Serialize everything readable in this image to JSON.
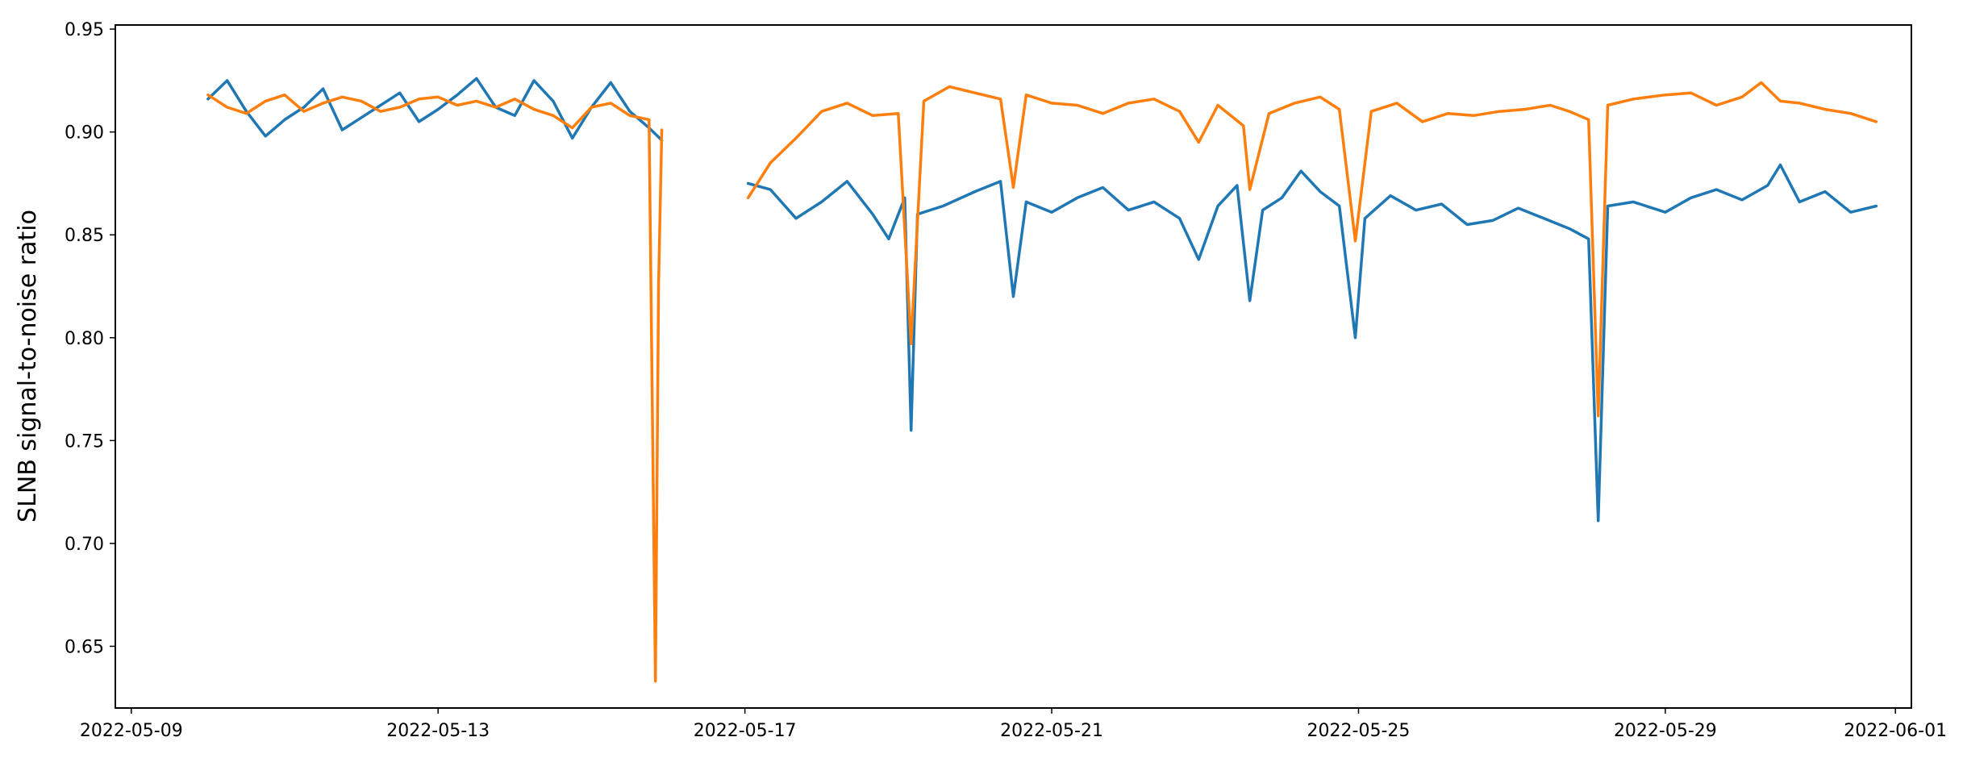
{
  "chart_data": {
    "type": "line",
    "title": "",
    "xlabel": "",
    "ylabel": "SLNB signal-to-noise ratio",
    "x_axis": {
      "kind": "date",
      "range": [
        "2022-05-08T19:00",
        "2022-06-01T05:00"
      ],
      "ticks": [
        "2022-05-09",
        "2022-05-13",
        "2022-05-17",
        "2022-05-21",
        "2022-05-25",
        "2022-05-29",
        "2022-06-01"
      ]
    },
    "y_axis": {
      "range": [
        0.62,
        0.952
      ],
      "ticks": [
        "0.65",
        "0.70",
        "0.75",
        "0.80",
        "0.85",
        "0.90",
        "0.95"
      ]
    },
    "grid": false,
    "legend": "none",
    "series": [
      {
        "color": "#1f77b4",
        "points": [
          [
            "2022-05-10T00:00",
            0.916
          ],
          [
            "2022-05-10T06:00",
            0.925
          ],
          [
            "2022-05-10T12:00",
            0.91
          ],
          [
            "2022-05-10T18:00",
            0.898
          ],
          [
            "2022-05-11T00:00",
            0.906
          ],
          [
            "2022-05-11T06:00",
            0.912
          ],
          [
            "2022-05-11T12:00",
            0.921
          ],
          [
            "2022-05-11T18:00",
            0.901
          ],
          [
            "2022-05-12T00:00",
            0.907
          ],
          [
            "2022-05-12T06:00",
            0.913
          ],
          [
            "2022-05-12T12:00",
            0.919
          ],
          [
            "2022-05-12T18:00",
            0.905
          ],
          [
            "2022-05-13T00:00",
            0.911
          ],
          [
            "2022-05-13T06:00",
            0.918
          ],
          [
            "2022-05-13T12:00",
            0.926
          ],
          [
            "2022-05-13T18:00",
            0.912
          ],
          [
            "2022-05-14T00:00",
            0.908
          ],
          [
            "2022-05-14T06:00",
            0.925
          ],
          [
            "2022-05-14T12:00",
            0.915
          ],
          [
            "2022-05-14T18:00",
            0.897
          ],
          [
            "2022-05-15T00:00",
            0.912
          ],
          [
            "2022-05-15T06:00",
            0.924
          ],
          [
            "2022-05-15T12:00",
            0.91
          ],
          [
            "2022-05-15T18:00",
            0.902
          ],
          [
            "2022-05-15T22:00",
            0.896
          ],
          null,
          [
            "2022-05-17T01:00",
            0.875
          ],
          [
            "2022-05-17T08:00",
            0.872
          ],
          [
            "2022-05-17T16:00",
            0.858
          ],
          [
            "2022-05-18T00:00",
            0.866
          ],
          [
            "2022-05-18T08:00",
            0.876
          ],
          [
            "2022-05-18T16:00",
            0.86
          ],
          [
            "2022-05-18T21:00",
            0.848
          ],
          [
            "2022-05-19T02:00",
            0.868
          ],
          [
            "2022-05-19T04:00",
            0.755
          ],
          [
            "2022-05-19T06:00",
            0.86
          ],
          [
            "2022-05-19T14:00",
            0.864
          ],
          [
            "2022-05-20T00:00",
            0.871
          ],
          [
            "2022-05-20T08:00",
            0.876
          ],
          [
            "2022-05-20T12:00",
            0.82
          ],
          [
            "2022-05-20T16:00",
            0.866
          ],
          [
            "2022-05-21T00:00",
            0.861
          ],
          [
            "2022-05-21T08:00",
            0.868
          ],
          [
            "2022-05-21T16:00",
            0.873
          ],
          [
            "2022-05-22T00:00",
            0.862
          ],
          [
            "2022-05-22T08:00",
            0.866
          ],
          [
            "2022-05-22T16:00",
            0.858
          ],
          [
            "2022-05-22T22:00",
            0.838
          ],
          [
            "2022-05-23T04:00",
            0.864
          ],
          [
            "2022-05-23T10:00",
            0.874
          ],
          [
            "2022-05-23T14:00",
            0.818
          ],
          [
            "2022-05-23T18:00",
            0.862
          ],
          [
            "2022-05-24T00:00",
            0.868
          ],
          [
            "2022-05-24T06:00",
            0.881
          ],
          [
            "2022-05-24T12:00",
            0.871
          ],
          [
            "2022-05-24T18:00",
            0.864
          ],
          [
            "2022-05-24T23:00",
            0.8
          ],
          [
            "2022-05-25T02:00",
            0.858
          ],
          [
            "2022-05-25T10:00",
            0.869
          ],
          [
            "2022-05-25T18:00",
            0.862
          ],
          [
            "2022-05-26T02:00",
            0.865
          ],
          [
            "2022-05-26T10:00",
            0.855
          ],
          [
            "2022-05-26T18:00",
            0.857
          ],
          [
            "2022-05-27T02:00",
            0.863
          ],
          [
            "2022-05-27T10:00",
            0.858
          ],
          [
            "2022-05-27T18:00",
            0.853
          ],
          [
            "2022-05-28T00:00",
            0.848
          ],
          [
            "2022-05-28T03:00",
            0.711
          ],
          [
            "2022-05-28T06:00",
            0.864
          ],
          [
            "2022-05-28T14:00",
            0.866
          ],
          [
            "2022-05-29T00:00",
            0.861
          ],
          [
            "2022-05-29T08:00",
            0.868
          ],
          [
            "2022-05-29T16:00",
            0.872
          ],
          [
            "2022-05-30T00:00",
            0.867
          ],
          [
            "2022-05-30T08:00",
            0.874
          ],
          [
            "2022-05-30T12:00",
            0.884
          ],
          [
            "2022-05-30T18:00",
            0.866
          ],
          [
            "2022-05-31T02:00",
            0.871
          ],
          [
            "2022-05-31T10:00",
            0.861
          ],
          [
            "2022-05-31T18:00",
            0.864
          ]
        ]
      },
      {
        "color": "#ff7f0e",
        "points": [
          [
            "2022-05-10T00:00",
            0.918
          ],
          [
            "2022-05-10T06:00",
            0.912
          ],
          [
            "2022-05-10T12:00",
            0.909
          ],
          [
            "2022-05-10T18:00",
            0.915
          ],
          [
            "2022-05-11T00:00",
            0.918
          ],
          [
            "2022-05-11T06:00",
            0.91
          ],
          [
            "2022-05-11T12:00",
            0.914
          ],
          [
            "2022-05-11T18:00",
            0.917
          ],
          [
            "2022-05-12T00:00",
            0.915
          ],
          [
            "2022-05-12T06:00",
            0.91
          ],
          [
            "2022-05-12T12:00",
            0.912
          ],
          [
            "2022-05-12T18:00",
            0.916
          ],
          [
            "2022-05-13T00:00",
            0.917
          ],
          [
            "2022-05-13T06:00",
            0.913
          ],
          [
            "2022-05-13T12:00",
            0.915
          ],
          [
            "2022-05-13T18:00",
            0.912
          ],
          [
            "2022-05-14T00:00",
            0.916
          ],
          [
            "2022-05-14T06:00",
            0.911
          ],
          [
            "2022-05-14T12:00",
            0.908
          ],
          [
            "2022-05-14T18:00",
            0.902
          ],
          [
            "2022-05-15T00:00",
            0.912
          ],
          [
            "2022-05-15T06:00",
            0.914
          ],
          [
            "2022-05-15T12:00",
            0.908
          ],
          [
            "2022-05-15T18:00",
            0.906
          ],
          [
            "2022-05-15T20:00",
            0.633
          ],
          [
            "2022-05-15T21:00",
            0.826
          ],
          [
            "2022-05-15T22:00",
            0.901
          ],
          null,
          [
            "2022-05-17T01:00",
            0.868
          ],
          [
            "2022-05-17T08:00",
            0.885
          ],
          [
            "2022-05-17T16:00",
            0.897
          ],
          [
            "2022-05-18T00:00",
            0.91
          ],
          [
            "2022-05-18T08:00",
            0.914
          ],
          [
            "2022-05-18T16:00",
            0.908
          ],
          [
            "2022-05-19T00:00",
            0.909
          ],
          [
            "2022-05-19T04:00",
            0.797
          ],
          [
            "2022-05-19T08:00",
            0.915
          ],
          [
            "2022-05-19T16:00",
            0.922
          ],
          [
            "2022-05-20T00:00",
            0.919
          ],
          [
            "2022-05-20T08:00",
            0.916
          ],
          [
            "2022-05-20T12:00",
            0.873
          ],
          [
            "2022-05-20T16:00",
            0.918
          ],
          [
            "2022-05-21T00:00",
            0.914
          ],
          [
            "2022-05-21T08:00",
            0.913
          ],
          [
            "2022-05-21T16:00",
            0.909
          ],
          [
            "2022-05-22T00:00",
            0.914
          ],
          [
            "2022-05-22T08:00",
            0.916
          ],
          [
            "2022-05-22T16:00",
            0.91
          ],
          [
            "2022-05-22T22:00",
            0.895
          ],
          [
            "2022-05-23T04:00",
            0.913
          ],
          [
            "2022-05-23T12:00",
            0.903
          ],
          [
            "2022-05-23T14:00",
            0.872
          ],
          [
            "2022-05-23T20:00",
            0.909
          ],
          [
            "2022-05-24T04:00",
            0.914
          ],
          [
            "2022-05-24T12:00",
            0.917
          ],
          [
            "2022-05-24T18:00",
            0.911
          ],
          [
            "2022-05-24T23:00",
            0.847
          ],
          [
            "2022-05-25T04:00",
            0.91
          ],
          [
            "2022-05-25T12:00",
            0.914
          ],
          [
            "2022-05-25T20:00",
            0.905
          ],
          [
            "2022-05-26T04:00",
            0.909
          ],
          [
            "2022-05-26T12:00",
            0.908
          ],
          [
            "2022-05-26T20:00",
            0.91
          ],
          [
            "2022-05-27T04:00",
            0.911
          ],
          [
            "2022-05-27T12:00",
            0.913
          ],
          [
            "2022-05-27T18:00",
            0.91
          ],
          [
            "2022-05-28T00:00",
            0.906
          ],
          [
            "2022-05-28T03:00",
            0.762
          ],
          [
            "2022-05-28T06:00",
            0.913
          ],
          [
            "2022-05-28T14:00",
            0.916
          ],
          [
            "2022-05-29T00:00",
            0.918
          ],
          [
            "2022-05-29T08:00",
            0.919
          ],
          [
            "2022-05-29T16:00",
            0.913
          ],
          [
            "2022-05-30T00:00",
            0.917
          ],
          [
            "2022-05-30T06:00",
            0.924
          ],
          [
            "2022-05-30T12:00",
            0.915
          ],
          [
            "2022-05-30T18:00",
            0.914
          ],
          [
            "2022-05-31T02:00",
            0.911
          ],
          [
            "2022-05-31T10:00",
            0.909
          ],
          [
            "2022-05-31T18:00",
            0.905
          ]
        ]
      }
    ]
  }
}
